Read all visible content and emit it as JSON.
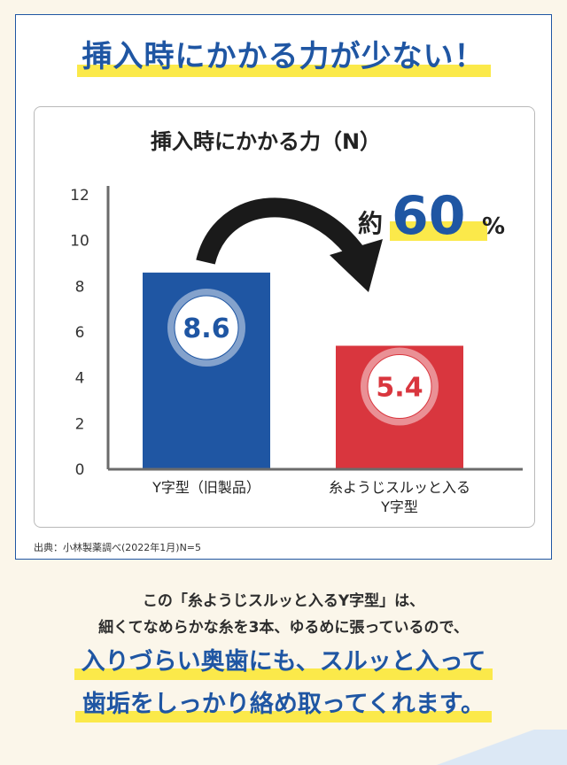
{
  "headline": "挿入時にかかる力が少ない！",
  "source": "出典：小林製薬調べ(2022年1月)N=5",
  "callout": {
    "prefix": "約",
    "number": "60",
    "suffix": "%"
  },
  "footer": {
    "line1": "この「糸ようじスルッと入るY字型」は、",
    "line2": "細くてなめらかな糸を3本、ゆるめに張っているので、",
    "line3": "入りづらい奥歯にも、スルッと入って",
    "line4": "歯垢をしっかり絡め取ってくれます。"
  },
  "colors": {
    "brand": "#1f56a3",
    "old_bar": "#1f56a3",
    "new_bar": "#d9363e",
    "highlight": "#fbe94a"
  },
  "chart_data": {
    "type": "bar",
    "title": "挿入時にかかる力（N）",
    "categories": [
      "Y字型（旧製品）",
      "糸ようじスルッと入る\nY字型"
    ],
    "values": [
      8.6,
      5.4
    ],
    "value_labels": [
      "8.6",
      "5.4"
    ],
    "ylim": [
      0,
      12
    ],
    "yticks": [
      0,
      2,
      4,
      6,
      8,
      10,
      12
    ],
    "grid": false,
    "legend": "none"
  }
}
